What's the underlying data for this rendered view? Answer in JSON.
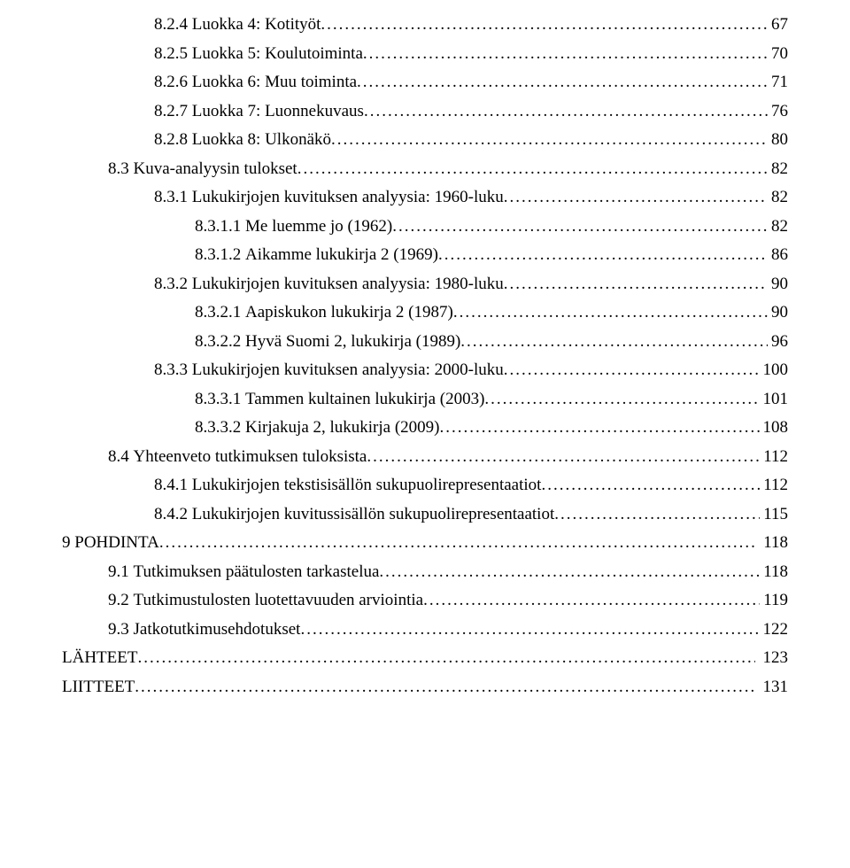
{
  "typography": {
    "font_family": "Times New Roman",
    "font_size_pt": 14,
    "text_color": "#000000",
    "background_color": "#ffffff",
    "leader_char": "."
  },
  "toc": [
    {
      "indent": 2,
      "num": "8.2.4",
      "title": "Luokka 4: Kotityöt",
      "page": "67"
    },
    {
      "indent": 2,
      "num": "8.2.5",
      "title": "Luokka 5: Koulutoiminta",
      "page": "70"
    },
    {
      "indent": 2,
      "num": "8.2.6",
      "title": "Luokka 6: Muu toiminta",
      "page": "71"
    },
    {
      "indent": 2,
      "num": "8.2.7",
      "title": "Luokka 7: Luonnekuvaus",
      "page": "76"
    },
    {
      "indent": 2,
      "num": "8.2.8",
      "title": "Luokka 8: Ulkonäkö",
      "page": "80"
    },
    {
      "indent": 1,
      "num": "8.3",
      "title": "Kuva-analyysin tulokset",
      "page": "82"
    },
    {
      "indent": 2,
      "num": "8.3.1",
      "title": "Lukukirjojen kuvituksen analyysia: 1960-luku",
      "page": "82"
    },
    {
      "indent": 3,
      "num": "8.3.1.1",
      "title": "Me luemme jo (1962)",
      "page": "82"
    },
    {
      "indent": 3,
      "num": "8.3.1.2",
      "title": "Aikamme lukukirja 2 (1969)",
      "page": "86"
    },
    {
      "indent": 2,
      "num": "8.3.2",
      "title": "Lukukirjojen kuvituksen analyysia: 1980-luku",
      "page": "90"
    },
    {
      "indent": 3,
      "num": "8.3.2.1",
      "title": "Aapiskukon lukukirja 2 (1987)",
      "page": "90"
    },
    {
      "indent": 3,
      "num": "8.3.2.2",
      "title": "Hyvä Suomi 2, lukukirja (1989)",
      "page": "96"
    },
    {
      "indent": 2,
      "num": "8.3.3",
      "title": "Lukukirjojen kuvituksen analyysia: 2000-luku",
      "page": "100"
    },
    {
      "indent": 3,
      "num": "8.3.3.1",
      "title": "Tammen kultainen lukukirja (2003)",
      "page": "101"
    },
    {
      "indent": 3,
      "num": "8.3.3.2",
      "title": "Kirjakuja 2, lukukirja (2009)",
      "page": "108"
    },
    {
      "indent": 1,
      "num": "8.4",
      "title": "Yhteenveto tutkimuksen tuloksista",
      "page": "112"
    },
    {
      "indent": 2,
      "num": "8.4.1",
      "title": "Lukukirjojen tekstisisällön sukupuolirepresentaatiot",
      "page": "112"
    },
    {
      "indent": 2,
      "num": "8.4.2",
      "title": "Lukukirjojen kuvitussisällön sukupuolirepresentaatiot",
      "page": "115"
    },
    {
      "indent": 0,
      "num": "9",
      "title": "POHDINTA",
      "page": "118",
      "right_pad": true
    },
    {
      "indent": 1,
      "num": "9.1",
      "title": "Tutkimuksen päätulosten tarkastelua",
      "page": "118"
    },
    {
      "indent": 1,
      "num": "9.2",
      "title": "Tutkimustulosten luotettavuuden arviointia",
      "page": "119"
    },
    {
      "indent": 1,
      "num": "9.3",
      "title": "Jatkotutkimusehdotukset",
      "page": "122"
    },
    {
      "indent": 0,
      "num": "",
      "title": "LÄHTEET",
      "page": "123",
      "right_pad": true
    },
    {
      "indent": 0,
      "num": "",
      "title": "LIITTEET",
      "page": "131",
      "right_pad": true
    }
  ]
}
